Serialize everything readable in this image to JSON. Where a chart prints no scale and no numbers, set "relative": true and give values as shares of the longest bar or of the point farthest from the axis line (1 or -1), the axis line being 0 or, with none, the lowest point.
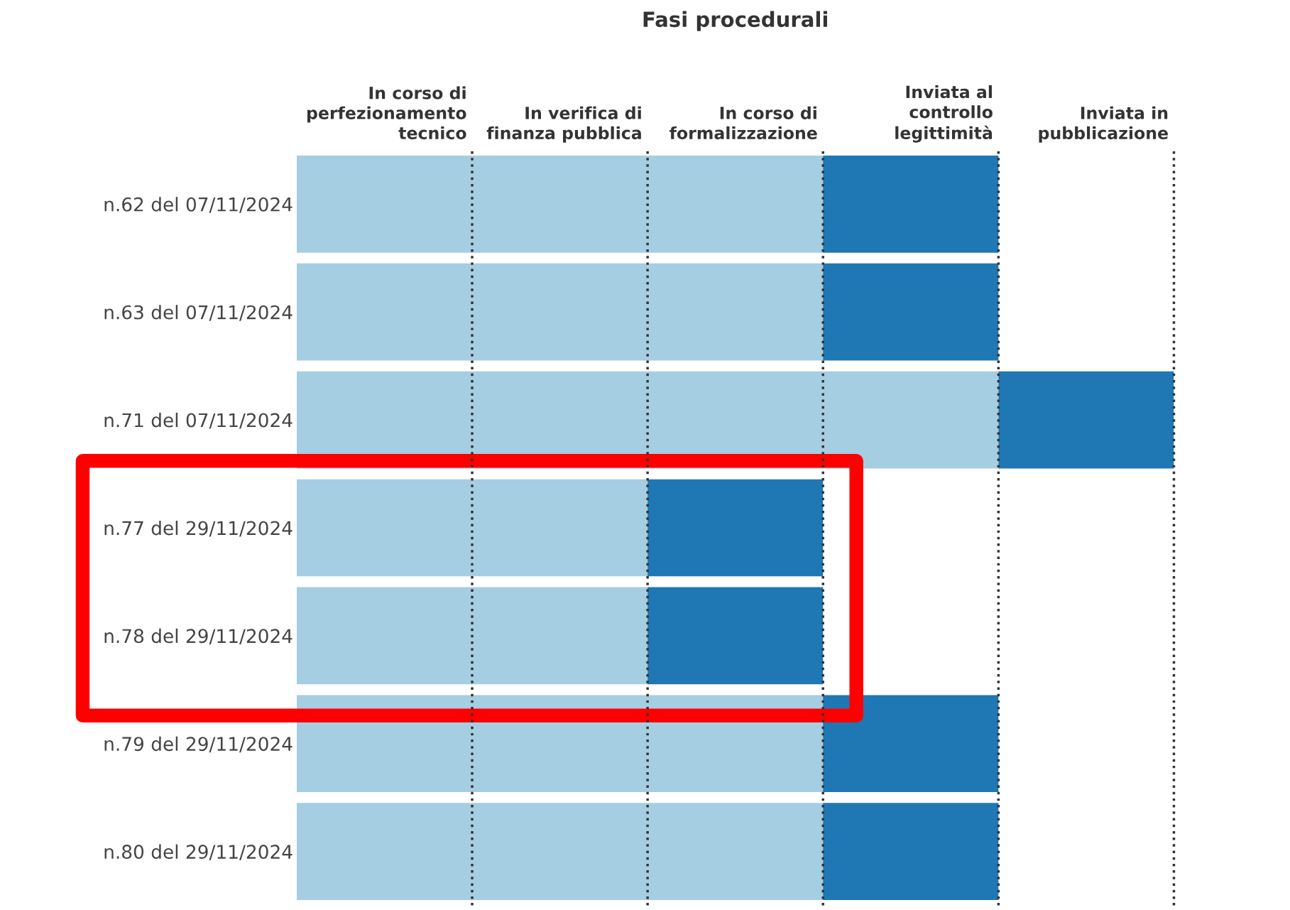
{
  "chart_data": {
    "type": "bar",
    "orientation": "horizontal",
    "stacked": true,
    "relative": true,
    "title": "Fasi procedurali",
    "categories": [
      "n.62 del 07/11/2024",
      "n.63 del 07/11/2024",
      "n.71 del 07/11/2024",
      "n.77 del 29/11/2024",
      "n.78 del 29/11/2024",
      "n.79 del 29/11/2024",
      "n.80 del 29/11/2024"
    ],
    "series": [
      {
        "color": "#a6cee3",
        "values": [
          0.6,
          0.6,
          0.8,
          0.4,
          0.4,
          0.6,
          0.6
        ]
      },
      {
        "color": "#1f78b4",
        "values": [
          0.2,
          0.2,
          0.2,
          0.2,
          0.2,
          0.2,
          0.2
        ]
      }
    ],
    "annotations": [
      "In corso di\nperfezionamento\ntecnico",
      "In verifica di\nfinanza pubblica",
      "In corso di\nformalizzazione",
      "Inviata al\ncontrollo\nlegittimità",
      "Inviata in\npubblicazione"
    ],
    "ref_lines": [
      {
        "axis": "x",
        "value": 0.2,
        "color": "#333333",
        "line_style": "dotted"
      },
      {
        "axis": "x",
        "value": 0.4,
        "color": "#333333",
        "line_style": "dotted"
      },
      {
        "axis": "x",
        "value": 0.6,
        "color": "#333333",
        "line_style": "dotted"
      },
      {
        "axis": "x",
        "value": 0.8,
        "color": "#333333",
        "line_style": "dotted"
      },
      {
        "axis": "x",
        "value": 1,
        "color": "#333333",
        "line_style": "dotted"
      }
    ],
    "grid": false,
    "legend": false
  }
}
